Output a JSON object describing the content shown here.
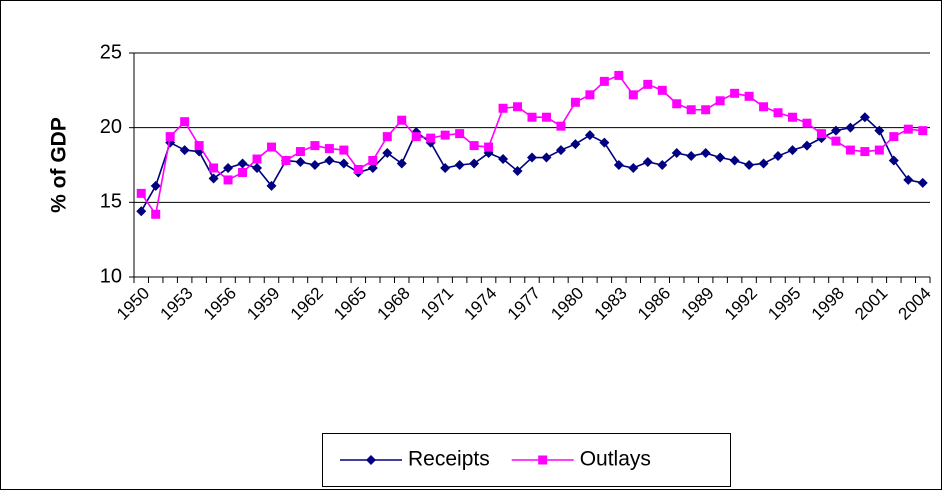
{
  "chart_data": {
    "type": "line",
    "y_label": "% of GDP",
    "categories": [
      "1950",
      null,
      null,
      "1953",
      null,
      null,
      "1956",
      null,
      null,
      "1959",
      null,
      null,
      "1962",
      null,
      null,
      "1965",
      null,
      null,
      "1968",
      null,
      null,
      "1971",
      null,
      null,
      "1974",
      null,
      null,
      "1977",
      null,
      null,
      "1980",
      null,
      null,
      "1983",
      null,
      null,
      "1986",
      null,
      null,
      "1989",
      null,
      null,
      "1992",
      null,
      null,
      "1995",
      null,
      null,
      "1998",
      null,
      null,
      "2001",
      null,
      null,
      "2004"
    ],
    "series": [
      {
        "name": "Receipts",
        "color": "#000080",
        "marker": "diamond",
        "values": [
          14.4,
          16.1,
          19.0,
          18.5,
          18.4,
          16.6,
          17.3,
          17.6,
          17.3,
          16.1,
          17.8,
          17.7,
          17.5,
          17.8,
          17.6,
          17.0,
          17.3,
          18.3,
          17.6,
          19.7,
          19.0,
          17.3,
          17.5,
          17.6,
          18.3,
          17.9,
          17.1,
          18.0,
          18.0,
          18.5,
          18.9,
          19.5,
          19.0,
          17.5,
          17.3,
          17.7,
          17.5,
          18.3,
          18.1,
          18.3,
          18.0,
          17.8,
          17.5,
          17.6,
          18.1,
          18.5,
          18.8,
          19.3,
          19.8,
          20.0,
          20.7,
          19.8,
          17.8,
          16.5,
          16.3
        ]
      },
      {
        "name": "Outlays",
        "color": "#ff00ff",
        "marker": "square",
        "values": [
          15.6,
          14.2,
          19.4,
          20.4,
          18.8,
          17.3,
          16.5,
          17.0,
          17.9,
          18.7,
          17.8,
          18.4,
          18.8,
          18.6,
          18.5,
          17.2,
          17.8,
          19.4,
          20.5,
          19.4,
          19.3,
          19.5,
          19.6,
          18.8,
          18.7,
          21.3,
          21.4,
          20.7,
          20.7,
          20.1,
          21.7,
          22.2,
          23.1,
          23.5,
          22.2,
          22.9,
          22.5,
          21.6,
          21.2,
          21.2,
          21.8,
          22.3,
          22.1,
          21.4,
          21.0,
          20.7,
          20.3,
          19.6,
          19.1,
          18.5,
          18.4,
          18.5,
          19.4,
          19.9,
          19.8
        ]
      }
    ],
    "ylim": [
      10,
      25
    ],
    "yticks": [
      10,
      15,
      20,
      25
    ],
    "grid": true,
    "legend": "bottom"
  }
}
